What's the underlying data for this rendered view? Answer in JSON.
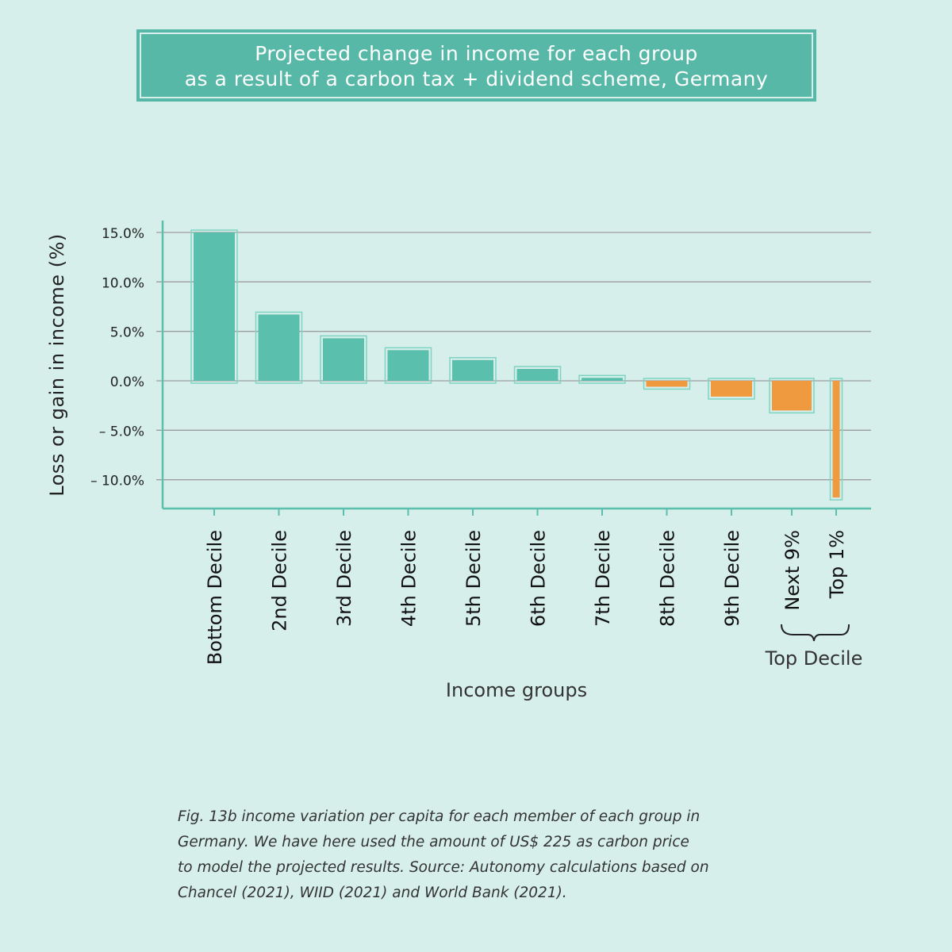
{
  "chart_data": {
    "type": "bar",
    "title": "Projected change in income for each group as a result of a carbon tax + dividend scheme, Germany",
    "title_lines": [
      "Projected change in income for each group",
      "as a result of a carbon tax + dividend scheme, Germany"
    ],
    "xlabel": "Income groups",
    "ylabel": "Loss or gain in income (%)",
    "categories": [
      "Bottom Decile",
      "2nd Decile",
      "3rd Decile",
      "4th Decile",
      "5th Decile",
      "6th Decile",
      "7th Decile",
      "8th Decile",
      "9th Decile",
      "Next 9%",
      "Top 1%"
    ],
    "values": [
      15.0,
      6.7,
      4.3,
      3.1,
      2.1,
      1.2,
      0.3,
      -0.6,
      -1.6,
      -3.0,
      -11.8
    ],
    "yticks": [
      15,
      10,
      5,
      0,
      -5,
      -10
    ],
    "ytick_labels": [
      "15.0%",
      "10.0%",
      "5.0%",
      "0.0%",
      "– 5.0%",
      "– 10.0%"
    ],
    "ylim": [
      -12.8,
      16.2
    ],
    "grid": true,
    "group_bracket_label": "Top Decile",
    "colors": {
      "positive": "#5bbfad",
      "negative": "#ef9a3e",
      "axis": "#5bbfad",
      "grid": "#9e9e9e",
      "bar_outline": "#7fd3c3"
    }
  },
  "caption": {
    "lines": [
      "Fig. 13b income variation per capita for each member of each group in",
      "Germany. We have here used the amount of US$ 225 as carbon price",
      "to model the projected results. Source: Autonomy calculations based on",
      "Chancel (2021), WIID (2021) and World Bank (2021)."
    ]
  }
}
